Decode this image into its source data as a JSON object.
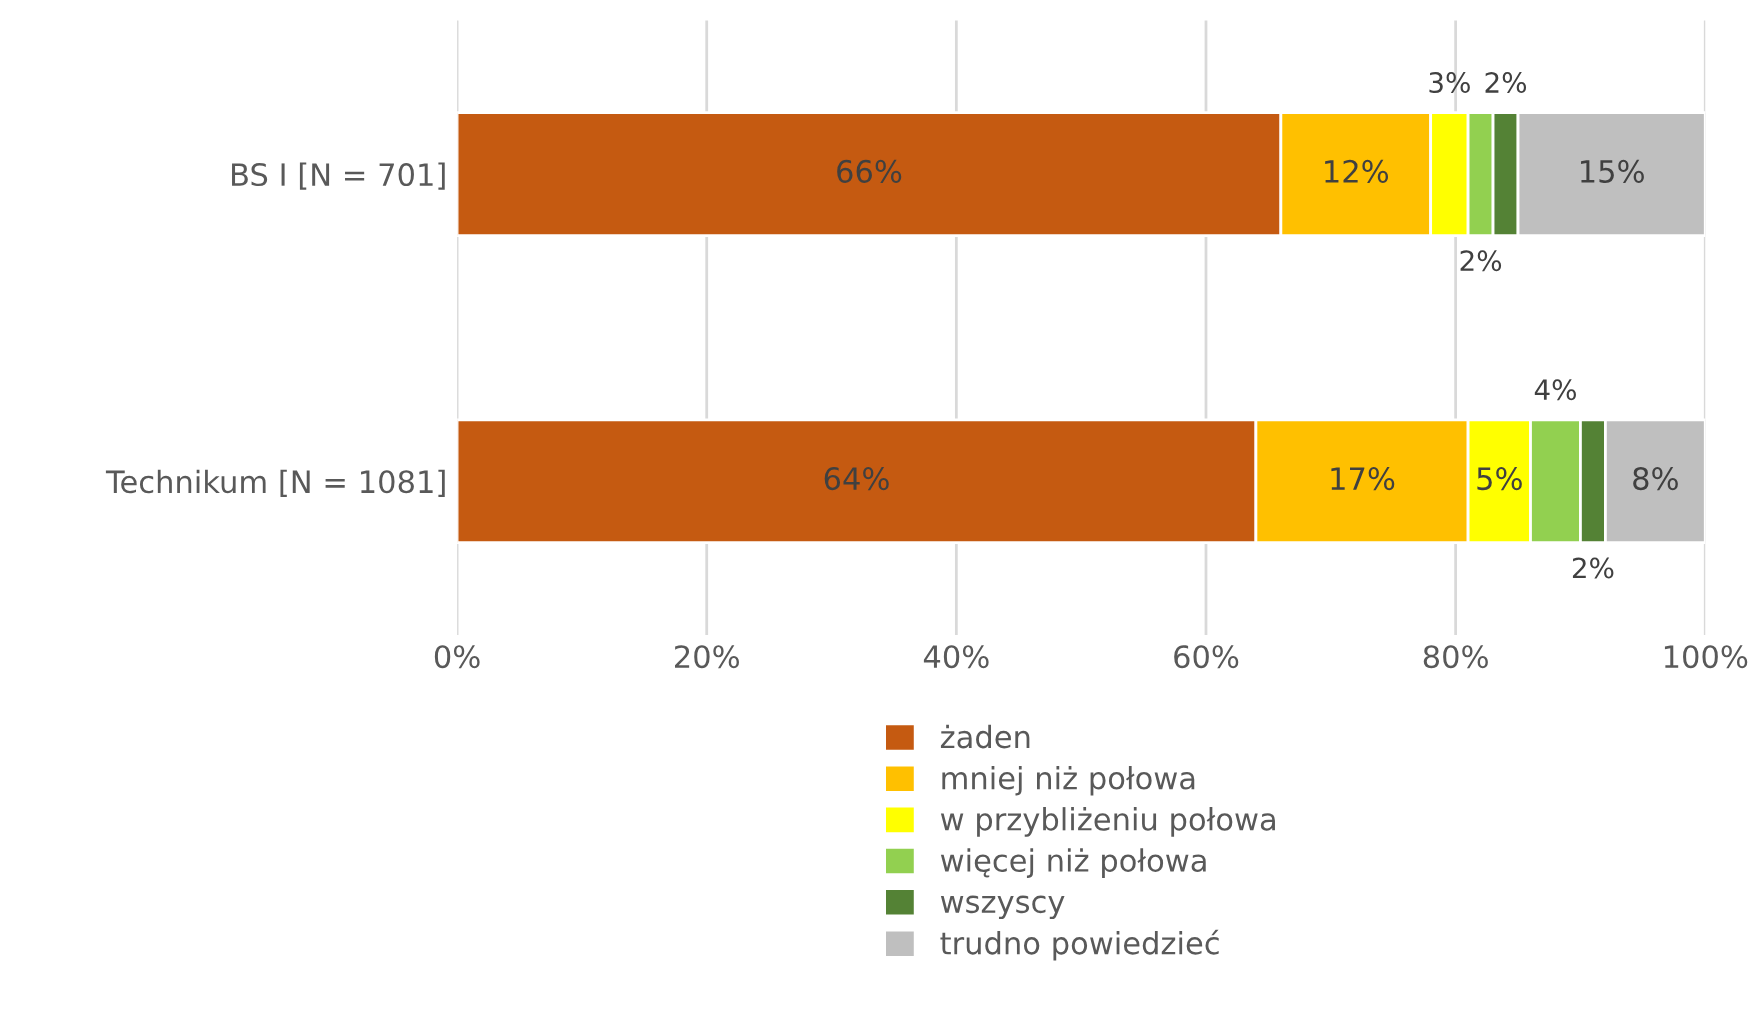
{
  "chart_data": {
    "type": "bar",
    "orientation": "horizontal",
    "stacked": true,
    "categories": [
      "BS I [N = 701]",
      "Technikum [N = 1081]"
    ],
    "series": [
      {
        "name": "żaden",
        "color": "#c55a11",
        "values": [
          66,
          64
        ]
      },
      {
        "name": "mniej niż połowa",
        "color": "#ffc000",
        "values": [
          12,
          17
        ]
      },
      {
        "name": "w przybliżeniu połowa",
        "color": "#ffff00",
        "values": [
          3,
          5
        ]
      },
      {
        "name": "więcej niż połowa",
        "color": "#92d050",
        "values": [
          2,
          4
        ]
      },
      {
        "name": "wszyscy",
        "color": "#548235",
        "values": [
          2,
          2
        ]
      },
      {
        "name": "trudno powiedzieć",
        "color": "#bfbfbf",
        "values": [
          15,
          8
        ]
      }
    ],
    "xlim": [
      0,
      100
    ],
    "xticks": [
      {
        "value": 0,
        "label": "0%"
      },
      {
        "value": 20,
        "label": "20%"
      },
      {
        "value": 40,
        "label": "40%"
      },
      {
        "value": 60,
        "label": "60%"
      },
      {
        "value": 80,
        "label": "80%"
      },
      {
        "value": 100,
        "label": "100%"
      }
    ],
    "value_labels": [
      [
        "66%",
        "64%"
      ],
      [
        "12%",
        "17%"
      ],
      [
        "3%",
        "5%"
      ],
      [
        "2%",
        "4%"
      ],
      [
        "2%",
        "2%"
      ],
      [
        "15%",
        "8%"
      ]
    ],
    "grid": "x",
    "legend": "bottom"
  }
}
